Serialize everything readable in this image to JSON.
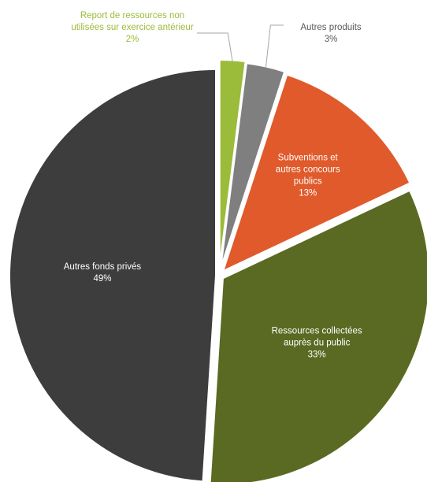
{
  "chart_data": {
    "type": "pie",
    "title": "",
    "slices": [
      {
        "key": "report",
        "label": [
          "Report de ressources non",
          "utilisées sur exercice antérieur"
        ],
        "percent_label": "2%",
        "value": 2,
        "color": "#9bbb3a",
        "label_color": "#9bbb3a",
        "placement": "outside"
      },
      {
        "key": "autres-prod",
        "label": [
          "Autres produits"
        ],
        "percent_label": "3%",
        "value": 3,
        "color": "#7f7f7f",
        "label_color": "#595959",
        "placement": "outside"
      },
      {
        "key": "subventions",
        "label": [
          "Subventions et",
          "autres concours",
          "publics"
        ],
        "percent_label": "13%",
        "value": 13,
        "color": "#e05a2b",
        "label_color": "#ffffff",
        "placement": "inside"
      },
      {
        "key": "ressources",
        "label": [
          "Ressources collectées",
          "auprès du public"
        ],
        "percent_label": "33%",
        "value": 33,
        "color": "#5a6a22",
        "label_color": "#ffffff",
        "placement": "inside"
      },
      {
        "key": "fonds",
        "label": [
          "Autres fonds privés"
        ],
        "percent_label": "49%",
        "value": 49,
        "color": "#3d3d3d",
        "label_color": "#ffffff",
        "placement": "inside"
      }
    ],
    "legend": "none"
  }
}
